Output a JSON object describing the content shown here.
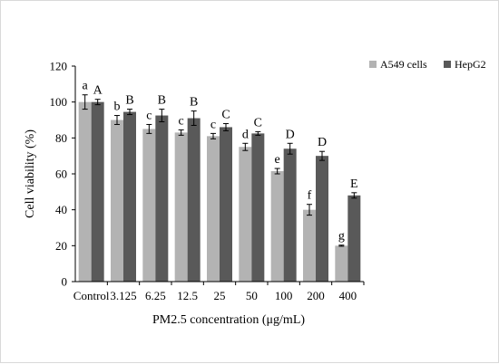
{
  "chart_data": {
    "type": "bar",
    "title": "",
    "xlabel": "PM2.5 concentration (μg/mL)",
    "ylabel": "Cell viability (%)",
    "ylim": [
      0,
      120
    ],
    "yticks": [
      0,
      20,
      40,
      60,
      80,
      100,
      120
    ],
    "grid": false,
    "legend_position": "top-right",
    "categories": [
      "Control",
      "3.125",
      "6.25",
      "12.5",
      "25",
      "50",
      "100",
      "200",
      "400"
    ],
    "series": [
      {
        "name": "A549 cells",
        "color": "#b3b3b3",
        "values": [
          100,
          90,
          85,
          83,
          81,
          75,
          61.5,
          40,
          20
        ],
        "errors": [
          4,
          2.5,
          2.5,
          1.5,
          1.5,
          2,
          1.5,
          3,
          0.3
        ],
        "labels": [
          "a",
          "b",
          "c",
          "c",
          "c",
          "d",
          "e",
          "f",
          "g"
        ]
      },
      {
        "name": "HepG2",
        "color": "#595959",
        "values": [
          100,
          94.5,
          92.5,
          91,
          86,
          82.5,
          74,
          70,
          48
        ],
        "errors": [
          1.5,
          1.5,
          3.5,
          4,
          2,
          1,
          3,
          2.5,
          1.5
        ],
        "labels": [
          "A",
          "B",
          "B",
          "B",
          "C",
          "C",
          "D",
          "D",
          "E"
        ]
      }
    ]
  }
}
